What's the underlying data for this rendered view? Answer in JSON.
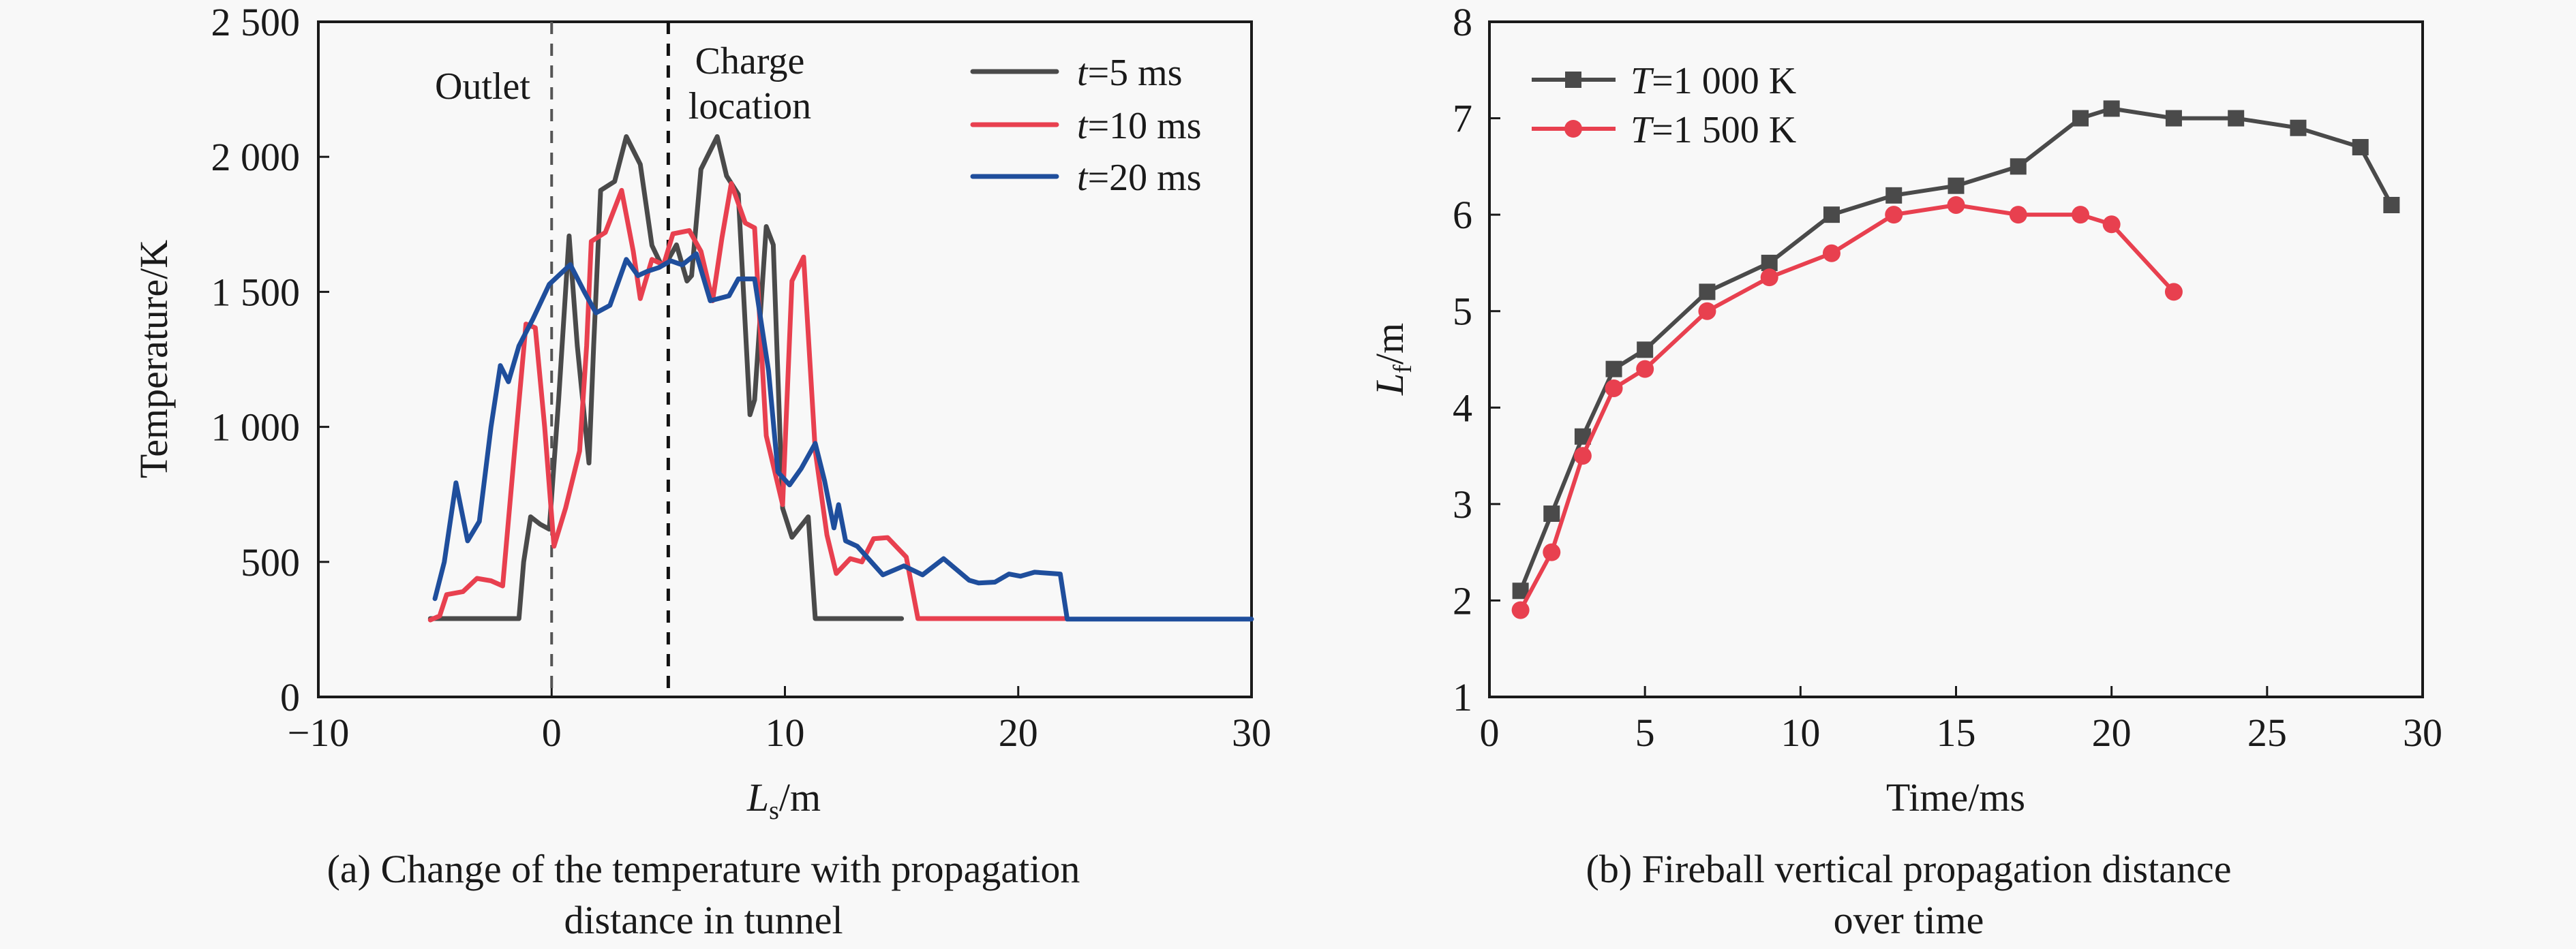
{
  "chart_data": [
    {
      "panel": "a",
      "type": "line",
      "caption_line1": "(a) Change of the temperature with propagation",
      "caption_line2": "distance in tunnel",
      "xlabel_main": "L",
      "xlabel_sub": "s",
      "xlabel_unit": "/m",
      "ylabel": "Temperature/K",
      "xlim": [
        -10,
        30
      ],
      "ylim": [
        0,
        2500
      ],
      "xticks": [
        -10,
        0,
        10,
        20,
        30
      ],
      "xtick_labels": [
        "−10",
        "0",
        "10",
        "20",
        "30"
      ],
      "yticks": [
        0,
        500,
        1000,
        1500,
        2000,
        2500
      ],
      "ytick_labels": [
        "0",
        "500",
        "1 000",
        "1 500",
        "2 000",
        "2 500"
      ],
      "grid": false,
      "legend_position": "top-right",
      "annotations": [
        {
          "text": "Outlet",
          "x": 0,
          "color": "#5a4fa0",
          "line_style": "dashed",
          "line_color": "#555555"
        },
        {
          "text_line1": "Charge",
          "text_line2": "location",
          "x": 5,
          "color": "#1a1a1a",
          "line_style": "dashed",
          "line_color": "#111111"
        }
      ],
      "series": [
        {
          "name_italic": "t",
          "name_rest": "=5 ms",
          "color": "#4a4a4a",
          "x": [
            -5.2,
            -1.4,
            -1.2,
            -0.9,
            -0.5,
            -0.1,
            0.3,
            0.75,
            1.1,
            1.6,
            1.8,
            2.1,
            2.7,
            3.2,
            3.8,
            4.3,
            4.7,
            5.0,
            5.35,
            5.8,
            6.0,
            6.4,
            7.1,
            7.5,
            8.0,
            8.5,
            8.7,
            9.2,
            9.5,
            9.9,
            10.3,
            11.0,
            11.3,
            15.0
          ],
          "y": [
            290,
            290,
            500,
            667,
            640,
            621,
            1100,
            1707,
            1300,
            866,
            1300,
            1876,
            1909,
            2075,
            1972,
            1672,
            1600,
            1620,
            1674,
            1540,
            1560,
            1954,
            2075,
            1929,
            1861,
            1045,
            1100,
            1742,
            1674,
            699,
            591,
            667,
            290,
            290
          ]
        },
        {
          "name_italic": "t",
          "name_rest": "=10 ms",
          "color": "#e8404f",
          "x": [
            -5.2,
            -4.8,
            -4.5,
            -3.8,
            -3.2,
            -2.6,
            -2.1,
            -1.6,
            -1.1,
            -0.7,
            -0.3,
            0.1,
            0.6,
            1.2,
            1.5,
            1.7,
            2.3,
            3.0,
            3.5,
            3.8,
            4.3,
            4.8,
            5.2,
            5.9,
            6.4,
            6.9,
            7.3,
            7.7,
            8.3,
            8.7,
            9.2,
            9.9,
            10.3,
            10.8,
            11.3,
            11.8,
            12.2,
            12.8,
            13.3,
            13.8,
            14.4,
            15.2,
            15.7,
            22.0
          ],
          "y": [
            285,
            300,
            379,
            390,
            439,
            430,
            411,
            900,
            1381,
            1367,
            1000,
            558,
            700,
            911,
            1300,
            1687,
            1720,
            1876,
            1650,
            1475,
            1620,
            1600,
            1715,
            1727,
            1650,
            1467,
            1700,
            1901,
            1755,
            1737,
            967,
            712,
            1540,
            1629,
            911,
            600,
            457,
            512,
            500,
            586,
            590,
            518,
            290,
            290
          ]
        },
        {
          "name_italic": "t",
          "name_rest": "=20 ms",
          "color": "#1f4e9c",
          "x": [
            -5.0,
            -4.6,
            -4.1,
            -3.6,
            -3.1,
            -2.6,
            -2.2,
            -1.85,
            -1.4,
            -0.8,
            -0.1,
            0.8,
            1.4,
            1.9,
            2.5,
            3.2,
            3.7,
            4.1,
            4.6,
            5.1,
            5.6,
            6.2,
            6.8,
            7.6,
            8.0,
            8.7,
            9.3,
            9.7,
            10.2,
            10.7,
            11.3,
            11.7,
            12.1,
            12.3,
            12.6,
            13.1,
            14.2,
            15.1,
            15.9,
            16.8,
            17.9,
            18.3,
            19.0,
            19.6,
            20.1,
            20.7,
            21.8,
            22.1,
            30.0
          ],
          "y": [
            364,
            500,
            793,
            578,
            650,
            1000,
            1227,
            1167,
            1300,
            1400,
            1528,
            1601,
            1500,
            1422,
            1450,
            1620,
            1560,
            1576,
            1590,
            1615,
            1600,
            1641,
            1467,
            1485,
            1548,
            1548,
            1207,
            833,
            785,
            846,
            939,
            800,
            626,
            712,
            578,
            558,
            452,
            485,
            452,
            512,
            432,
            422,
            425,
            455,
            447,
            462,
            455,
            288,
            288
          ]
        }
      ]
    },
    {
      "panel": "b",
      "type": "line",
      "caption_line1": "(b) Fireball vertical propagation distance",
      "caption_line2": "over time",
      "xlabel": "Time/ms",
      "ylabel_main": "L",
      "ylabel_sub": "f",
      "ylabel_unit": "/m",
      "xlim": [
        0,
        30
      ],
      "ylim": [
        1,
        8
      ],
      "xticks": [
        0,
        5,
        10,
        15,
        20,
        25,
        30
      ],
      "xtick_labels": [
        "0",
        "5",
        "10",
        "15",
        "20",
        "25",
        "30"
      ],
      "yticks": [
        1,
        2,
        3,
        4,
        5,
        6,
        7,
        8
      ],
      "ytick_labels": [
        "1",
        "2",
        "3",
        "4",
        "5",
        "6",
        "7",
        "8"
      ],
      "grid": false,
      "legend_position": "top-left",
      "series": [
        {
          "name_italic": "T",
          "name_rest": "=1 000 K",
          "color": "#4a4a4a",
          "marker": "square",
          "x": [
            1,
            2,
            3,
            4,
            5,
            7,
            9,
            11,
            13,
            15,
            17,
            19,
            20,
            22,
            24,
            26,
            28,
            29
          ],
          "y": [
            2.1,
            2.9,
            3.7,
            4.4,
            4.6,
            5.2,
            5.5,
            6.0,
            6.2,
            6.3,
            6.5,
            7.0,
            7.1,
            7.0,
            7.0,
            6.9,
            6.7,
            6.1
          ]
        },
        {
          "name_italic": "T",
          "name_rest": "=1 500 K",
          "color": "#e8404f",
          "marker": "circle",
          "x": [
            1,
            2,
            3,
            4,
            5,
            7,
            9,
            11,
            13,
            15,
            17,
            19,
            20,
            22
          ],
          "y": [
            1.9,
            2.5,
            3.5,
            4.2,
            4.4,
            5.0,
            5.35,
            5.6,
            6.0,
            6.1,
            6.0,
            6.0,
            5.9,
            5.2
          ]
        }
      ]
    }
  ]
}
